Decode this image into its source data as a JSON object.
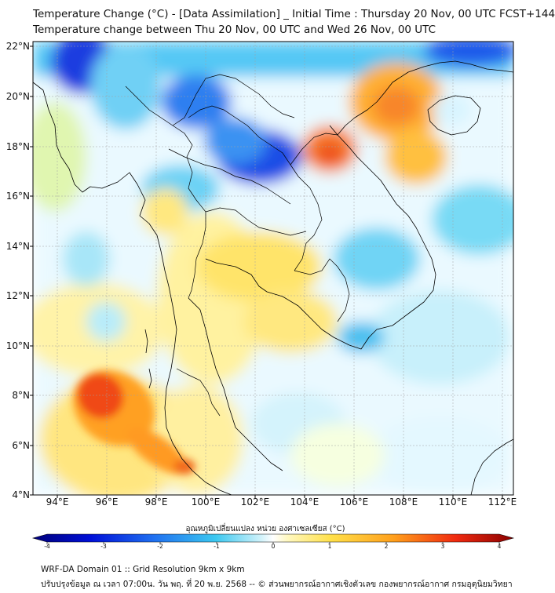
{
  "title_line1": "Temperature Change (°C) - [Data Assimilation] _ Initial Time : Thursday 20 Nov, 00 UTC FCST+144",
  "title_line2": "Temperature change between Thu 20 Nov, 00 UTC and Wed 26 Nov, 00 UTC",
  "lat_labels": [
    "22°N",
    "20°N",
    "18°N",
    "16°N",
    "14°N",
    "12°N",
    "10°N",
    "8°N",
    "6°N",
    "4°N"
  ],
  "lon_labels": [
    "94°E",
    "96°E",
    "98°E",
    "100°E",
    "102°E",
    "104°E",
    "106°E",
    "108°E",
    "110°E",
    "112°E"
  ],
  "colorbar": {
    "title": "อุณหภูมิเปลี่ยนแปลง หน่วย องศาเซลเซียส (°C)",
    "ticks": [
      "-4",
      "-3",
      "-2",
      "-1",
      "0",
      "1",
      "2",
      "3",
      "4"
    ],
    "range": [
      -4,
      4
    ]
  },
  "footer_line1": "WRF-DA Domain 01 :: Grid Resolution 9km x 9km",
  "footer_line2": "ปรับปรุงข้อมูล ณ เวลา 07:00น. วัน พฤ. ที่ 20 พ.ย. 2568 -- © ส่วนพยากรณ์อากาศเชิงตัวเลข กองพยากรณ์อากาศ กรมอุตุนิยมวิทยา",
  "colors": {
    "cold_max": "#00007a",
    "warm_max": "#8a0000",
    "border": "#000000"
  }
}
